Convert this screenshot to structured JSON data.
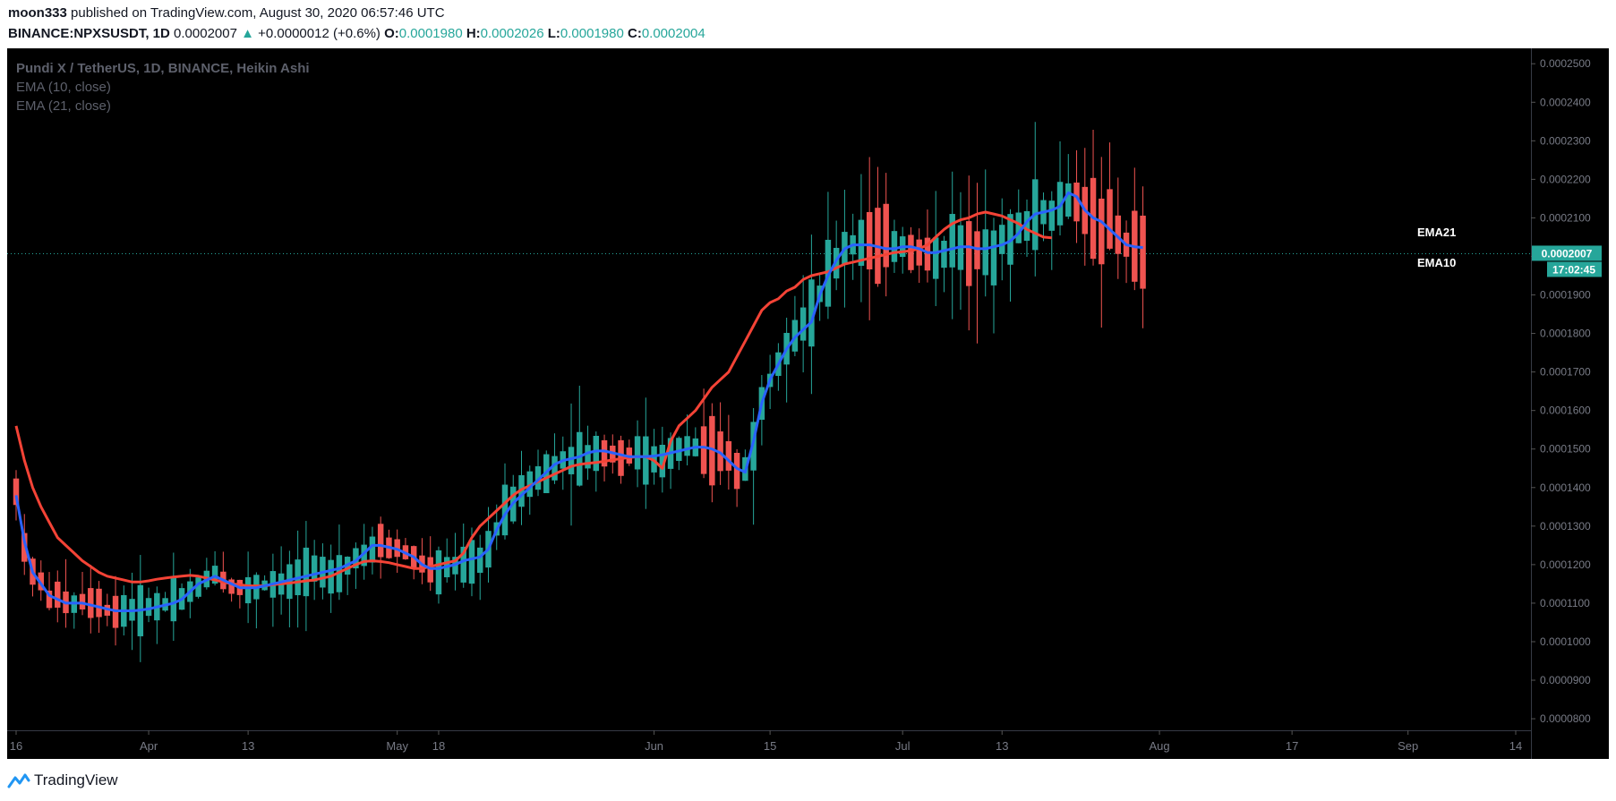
{
  "header": {
    "author": "moon333",
    "published_text": "published on TradingView.com, August 30, 2020 06:57:46 UTC",
    "symbol": "BINANCE:NPXSUSDT, 1D",
    "last_price": "0.0002007",
    "change_arrow": "▲",
    "change": "+0.0000012 (+0.6%)",
    "open_label": "O:",
    "open": "0.0001980",
    "high_label": "H:",
    "high": "0.0002026",
    "low_label": "L:",
    "low": "0.0001980",
    "close_label": "C:",
    "close": "0.0002004"
  },
  "legend": {
    "title": "Pundi X / TetherUS, 1D, BINANCE, Heikin Ashi",
    "ema10": "EMA (10, close)",
    "ema21": "EMA (21, close)"
  },
  "footer": {
    "brand": "TradingView",
    "logo_icon": "tradingview-logo-icon"
  },
  "colors": {
    "background": "#000000",
    "up": "#26a69a",
    "down": "#ef5350",
    "ema10": "#2962ff",
    "ema21": "#f44336",
    "price_label": "#26a69a",
    "axis_text": "#787b86",
    "legend_text": "#5d606b"
  },
  "chart_data": {
    "type": "candlestick",
    "title": "Pundi X / TetherUS, 1D, BINANCE, Heikin Ashi",
    "y_ticks": [
      "0.0002500",
      "0.0002400",
      "0.0002300",
      "0.0002200",
      "0.0002100",
      "0.0002000",
      "0.0001900",
      "0.0001800",
      "0.0001700",
      "0.0001600",
      "0.0001500",
      "0.0001400",
      "0.0001300",
      "0.0001200",
      "0.0001100",
      "0.0001000",
      "0.0000900",
      "0.0000800"
    ],
    "ylim": [
      7.7e-05,
      0.000254
    ],
    "x_tick_labels": [
      {
        "label": "16",
        "day": 0
      },
      {
        "label": "Apr",
        "day": 16
      },
      {
        "label": "13",
        "day": 28
      },
      {
        "label": "May",
        "day": 46
      },
      {
        "label": "18",
        "day": 51
      },
      {
        "label": "Jun",
        "day": 77
      },
      {
        "label": "15",
        "day": 91
      },
      {
        "label": "Jul",
        "day": 107
      },
      {
        "label": "13",
        "day": 119
      },
      {
        "label": "Aug",
        "day": 138
      },
      {
        "label": "17",
        "day": 154
      },
      {
        "label": "Sep",
        "day": 168
      },
      {
        "label": "14",
        "day": 181
      }
    ],
    "x_day_range": [
      0,
      181
    ],
    "current_price": "0.0002007",
    "countdown": "17:02:45",
    "series_labels": {
      "ema21": "EMA21",
      "ema10": "EMA10"
    },
    "ema10_values": [
      0.000138,
      0.000126,
      0.000118,
      0.000115,
      0.000112,
      0.000111,
      0.00011,
      0.00011,
      0.00011,
      0.0001095,
      0.000109,
      0.0001085,
      0.000108,
      0.000108,
      0.000108,
      0.0001082,
      0.0001085,
      0.000109,
      0.0001095,
      0.00011,
      0.000111,
      0.000113,
      0.000115,
      0.000116,
      0.000117,
      0.000116,
      0.000115,
      0.000114,
      0.000114,
      0.000114,
      0.0001145,
      0.000115,
      0.0001155,
      0.000116,
      0.0001165,
      0.000117,
      0.0001175,
      0.000118,
      0.0001185,
      0.000119,
      0.00012,
      0.000121,
      0.000123,
      0.000125,
      0.000125,
      0.0001245,
      0.000124,
      0.000123,
      0.000122,
      0.00012,
      0.000119,
      0.000119,
      0.0001195,
      0.00012,
      0.000121,
      0.0001215,
      0.000122,
      0.000124,
      0.000129,
      0.000133,
      0.000136,
      0.000138,
      0.00014,
      0.000142,
      0.000144,
      0.000146,
      0.000147,
      0.0001475,
      0.000148,
      0.000149,
      0.0001495,
      0.0001495,
      0.000149,
      0.0001485,
      0.000148,
      0.000148,
      0.000148,
      0.0001482,
      0.0001485,
      0.000149,
      0.0001495,
      0.00015,
      0.0001505,
      0.0001505,
      0.00015,
      0.000149,
      0.000147,
      0.000145,
      0.000144,
      0.000152,
      0.000162,
      0.000168,
      0.000172,
      0.000176,
      0.000179,
      0.000181,
      0.000183,
      0.00019,
      0.000195,
      0.000199,
      0.000202,
      0.000203,
      0.000203,
      0.000203,
      0.0002025,
      0.000202,
      0.000202,
      0.0002025,
      0.0002025,
      0.000202,
      0.000201,
      0.000201,
      0.0002015,
      0.000202,
      0.0002025,
      0.0002025,
      0.000202,
      0.000202,
      0.0002025,
      0.000203,
      0.000204,
      0.000206,
      0.000209,
      0.000211,
      0.0002115,
      0.000212,
      0.000213,
      0.0002165,
      0.0002155,
      0.000212,
      0.00021,
      0.000209,
      0.000207,
      0.000205,
      0.000203,
      0.0002025,
      0.0002023
    ],
    "ema21_values": [
      0.000156,
      0.000147,
      0.00014,
      0.000135,
      0.000131,
      0.000127,
      0.000125,
      0.000123,
      0.000121,
      0.0001195,
      0.000118,
      0.000117,
      0.0001165,
      0.000116,
      0.0001155,
      0.0001155,
      0.0001158,
      0.0001162,
      0.0001165,
      0.0001168,
      0.000117,
      0.0001172,
      0.000117,
      0.0001165,
      0.000116,
      0.0001155,
      0.000115,
      0.0001148,
      0.0001145,
      0.0001145,
      0.0001145,
      0.0001148,
      0.000115,
      0.0001152,
      0.0001155,
      0.0001158,
      0.000116,
      0.0001165,
      0.000117,
      0.000118,
      0.000119,
      0.00012,
      0.0001208,
      0.000121,
      0.0001208,
      0.0001205,
      0.00012,
      0.0001195,
      0.000119,
      0.000119,
      0.0001195,
      0.00012,
      0.0001205,
      0.000121,
      0.000123,
      0.000127,
      0.00013,
      0.000132,
      0.000134,
      0.000136,
      0.000138,
      0.0001395,
      0.0001405,
      0.0001415,
      0.0001425,
      0.0001435,
      0.0001445,
      0.0001455,
      0.000146,
      0.0001463,
      0.0001465,
      0.0001468,
      0.0001472,
      0.0001475,
      0.0001478,
      0.000148,
      0.000148,
      0.000147,
      0.000145,
      0.000152,
      0.000156,
      0.000158,
      0.00016,
      0.000163,
      0.000166,
      0.000168,
      0.00017,
      0.000174,
      0.000178,
      0.000182,
      0.000186,
      0.000188,
      0.000189,
      0.000191,
      0.000192,
      0.000194,
      0.000195,
      0.0001955,
      0.000196,
      0.000197,
      0.000198,
      0.0001985,
      0.000199,
      0.0001995,
      0.0002,
      0.0002005,
      0.000201,
      0.0002012,
      0.0002015,
      0.000202,
      0.000203,
      0.000205,
      0.000207,
      0.0002085,
      0.0002095,
      0.00021,
      0.000211,
      0.0002115,
      0.000211,
      0.0002105,
      0.0002095,
      0.0002085,
      0.000207,
      0.000206,
      0.000205,
      0.0002048
    ]
  }
}
